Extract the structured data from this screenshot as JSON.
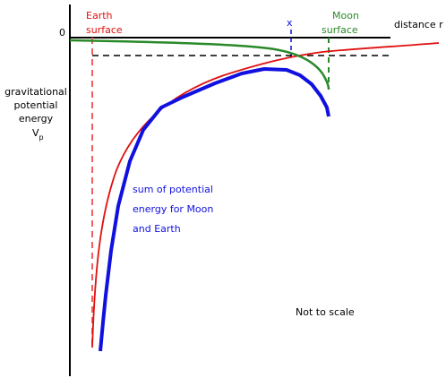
{
  "axes": {
    "origin": "0",
    "x_label": "distance r",
    "y_label": [
      "gravitational",
      "potential",
      "energy"
    ],
    "y_symbol": {
      "symbol": "V",
      "subscript": "p"
    }
  },
  "markers": {
    "earth": [
      "Earth",
      "surface"
    ],
    "moon": [
      "Moon",
      "surface"
    ],
    "neutral_point": "x"
  },
  "annotation": [
    "sum of potential",
    "energy for Moon",
    "and Earth"
  ],
  "note": "Not to scale"
}
